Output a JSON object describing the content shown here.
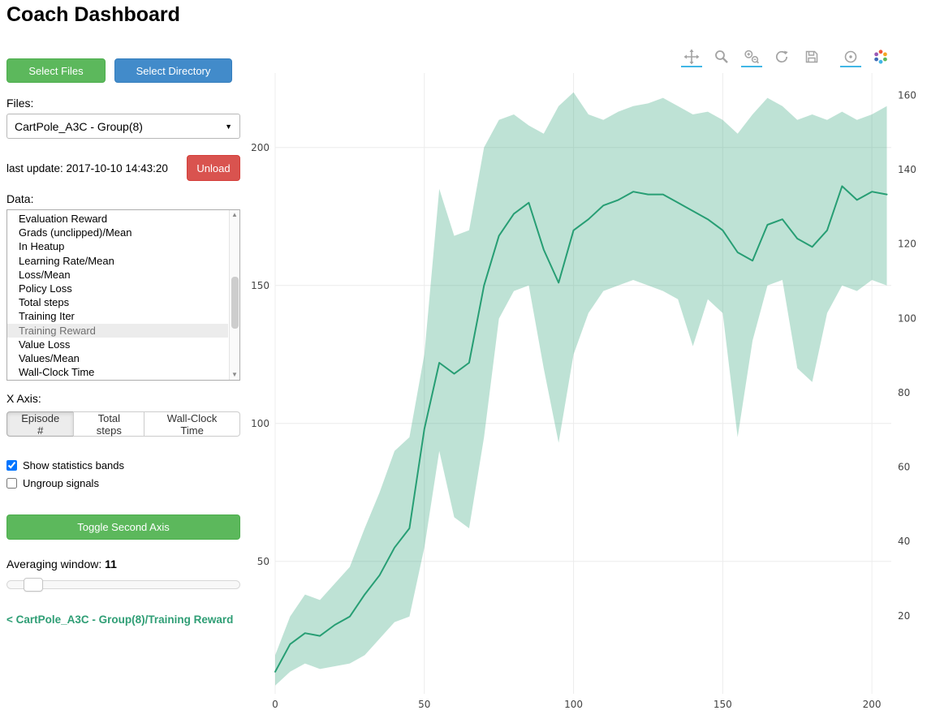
{
  "header": {
    "title": "Coach Dashboard"
  },
  "colors": {
    "button_green": "#5cb85c",
    "button_blue": "#428bca",
    "button_red": "#d9534f",
    "link_green": "#2f9e75",
    "modebar_active_underline": "#41b6e6"
  },
  "icons": {
    "caret": "▼",
    "scroll_up": "▲",
    "scroll_down": "▼"
  },
  "sidebar": {
    "select_files_label": "Select Files",
    "select_directory_label": "Select Directory",
    "files_label": "Files:",
    "files_select": {
      "value": "CartPole_A3C - Group(8)"
    },
    "last_update": "last update: 2017-10-10 14:43:20",
    "unload_label": "Unload",
    "data_label": "Data:",
    "data_list": {
      "items": [
        {
          "label": "Evaluation Reward",
          "selected": false
        },
        {
          "label": "Grads (unclipped)/Mean",
          "selected": false
        },
        {
          "label": "In Heatup",
          "selected": false
        },
        {
          "label": "Learning Rate/Mean",
          "selected": false
        },
        {
          "label": "Loss/Mean",
          "selected": false
        },
        {
          "label": "Policy Loss",
          "selected": false
        },
        {
          "label": "Total steps",
          "selected": false
        },
        {
          "label": "Training Iter",
          "selected": false
        },
        {
          "label": "Training Reward",
          "selected": true
        },
        {
          "label": "Value Loss",
          "selected": false
        },
        {
          "label": "Values/Mean",
          "selected": false
        },
        {
          "label": "Wall-Clock Time",
          "selected": false
        }
      ]
    },
    "x_axis_label": "X Axis:",
    "x_axis": {
      "options": [
        "Episode #",
        "Total steps",
        "Wall-Clock Time"
      ],
      "selected": "Episode #"
    },
    "checkboxes": [
      {
        "label": "Show statistics bands",
        "checked": true
      },
      {
        "label": "Ungroup signals",
        "checked": false
      }
    ],
    "toggle_second_axis_label": "Toggle Second Axis",
    "averaging_window_label": "Averaging window:",
    "averaging_window_value": "11",
    "breadcrumb_link": "< CartPole_A3C - Group(8)/Training Reward"
  },
  "chart_data": {
    "type": "line",
    "title": "",
    "series_name": "CartPole_A3C - Group(8)/Training Reward",
    "x": [
      0,
      5,
      10,
      15,
      20,
      25,
      30,
      35,
      40,
      45,
      50,
      55,
      60,
      65,
      70,
      75,
      80,
      85,
      90,
      95,
      100,
      105,
      110,
      115,
      120,
      125,
      130,
      135,
      140,
      145,
      150,
      155,
      160,
      165,
      170,
      175,
      180,
      185,
      190,
      195,
      200,
      205
    ],
    "series": [
      {
        "name": "Training Reward (mean)",
        "values": [
          10,
          20,
          24,
          23,
          27,
          30,
          38,
          45,
          55,
          62,
          98,
          122,
          118,
          122,
          150,
          168,
          176,
          180,
          163,
          151,
          170,
          174,
          179,
          181,
          184,
          183,
          183,
          180,
          177,
          174,
          170,
          162,
          159,
          172,
          174,
          167,
          164,
          170,
          186,
          181,
          184,
          183
        ]
      },
      {
        "name": "band upper",
        "values": [
          16,
          30,
          38,
          36,
          42,
          48,
          62,
          75,
          90,
          95,
          125,
          185,
          168,
          170,
          200,
          210,
          212,
          208,
          205,
          215,
          220,
          212,
          210,
          213,
          215,
          216,
          218,
          215,
          212,
          213,
          210,
          205,
          212,
          218,
          215,
          210,
          212,
          210,
          213,
          210,
          212,
          215
        ]
      },
      {
        "name": "band lower",
        "values": [
          5,
          10,
          13,
          11,
          12,
          13,
          16,
          22,
          28,
          30,
          55,
          90,
          66,
          62,
          95,
          138,
          148,
          150,
          120,
          93,
          125,
          140,
          148,
          150,
          152,
          150,
          148,
          145,
          128,
          145,
          140,
          95,
          130,
          150,
          152,
          120,
          115,
          140,
          150,
          148,
          152,
          150
        ]
      }
    ],
    "xaxis": {
      "label": "",
      "ticks": [
        0,
        50,
        100,
        150,
        200
      ],
      "range": [
        0,
        206.5
      ]
    },
    "yaxis_left": {
      "label": "",
      "ticks": [
        50,
        100,
        150,
        200
      ],
      "range": [
        2,
        227
      ]
    },
    "yaxis_right": {
      "label": "",
      "ticks": [
        20,
        40,
        60,
        80,
        100,
        120,
        140,
        160
      ],
      "range": [
        -1,
        166
      ]
    },
    "line_color": "#279e74",
    "band_color": "#279e74",
    "band_opacity": 0.3,
    "grid": true,
    "legend": "none"
  }
}
